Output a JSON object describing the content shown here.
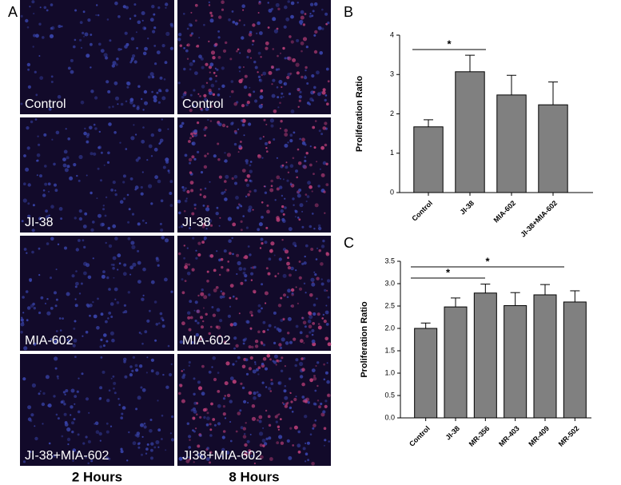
{
  "panel_a": {
    "label": "A",
    "rows": [
      {
        "left": "Control",
        "right": "Control"
      },
      {
        "left": "JI-38",
        "right": "JI-38"
      },
      {
        "left": "MIA-602",
        "right": "MIA-602"
      },
      {
        "left": "JI-38+MIA-602",
        "right": "JI38+MIA-602"
      }
    ],
    "columns": [
      "2 Hours",
      "8 Hours"
    ]
  },
  "chart_data": [
    {
      "type": "bar",
      "panel_label": "B",
      "ylabel": "Proliferation Ratio",
      "categories": [
        "Control",
        "JI-38",
        "MIA-602",
        "JI-38+MIA-602"
      ],
      "values": [
        1.67,
        3.07,
        2.48,
        2.23
      ],
      "errors": [
        0.18,
        0.42,
        0.5,
        0.58
      ],
      "color": "#808080",
      "ylim": [
        0,
        4
      ],
      "yticks": [
        0,
        1,
        2,
        3,
        4
      ],
      "annotations": [
        "*"
      ]
    },
    {
      "type": "bar",
      "panel_label": "C",
      "ylabel": "Proliferation Ratio",
      "categories": [
        "Control",
        "JI-38",
        "MR-356",
        "MR-403",
        "MR-409",
        "MR-502"
      ],
      "values": [
        2.0,
        2.48,
        2.79,
        2.51,
        2.75,
        2.59
      ],
      "errors": [
        0.12,
        0.2,
        0.2,
        0.29,
        0.23,
        0.25
      ],
      "color": "#808080",
      "ylim": [
        0,
        3.5
      ],
      "yticks": [
        {
          "value": 0,
          "label": "0.0"
        },
        0.5,
        {
          "value": 1,
          "label": "1.0"
        },
        1.5,
        {
          "value": 2,
          "label": "2.0"
        },
        2.5,
        {
          "value": 3,
          "label": "3.0"
        },
        3.5
      ],
      "annotations": [
        "*",
        "*"
      ]
    }
  ]
}
